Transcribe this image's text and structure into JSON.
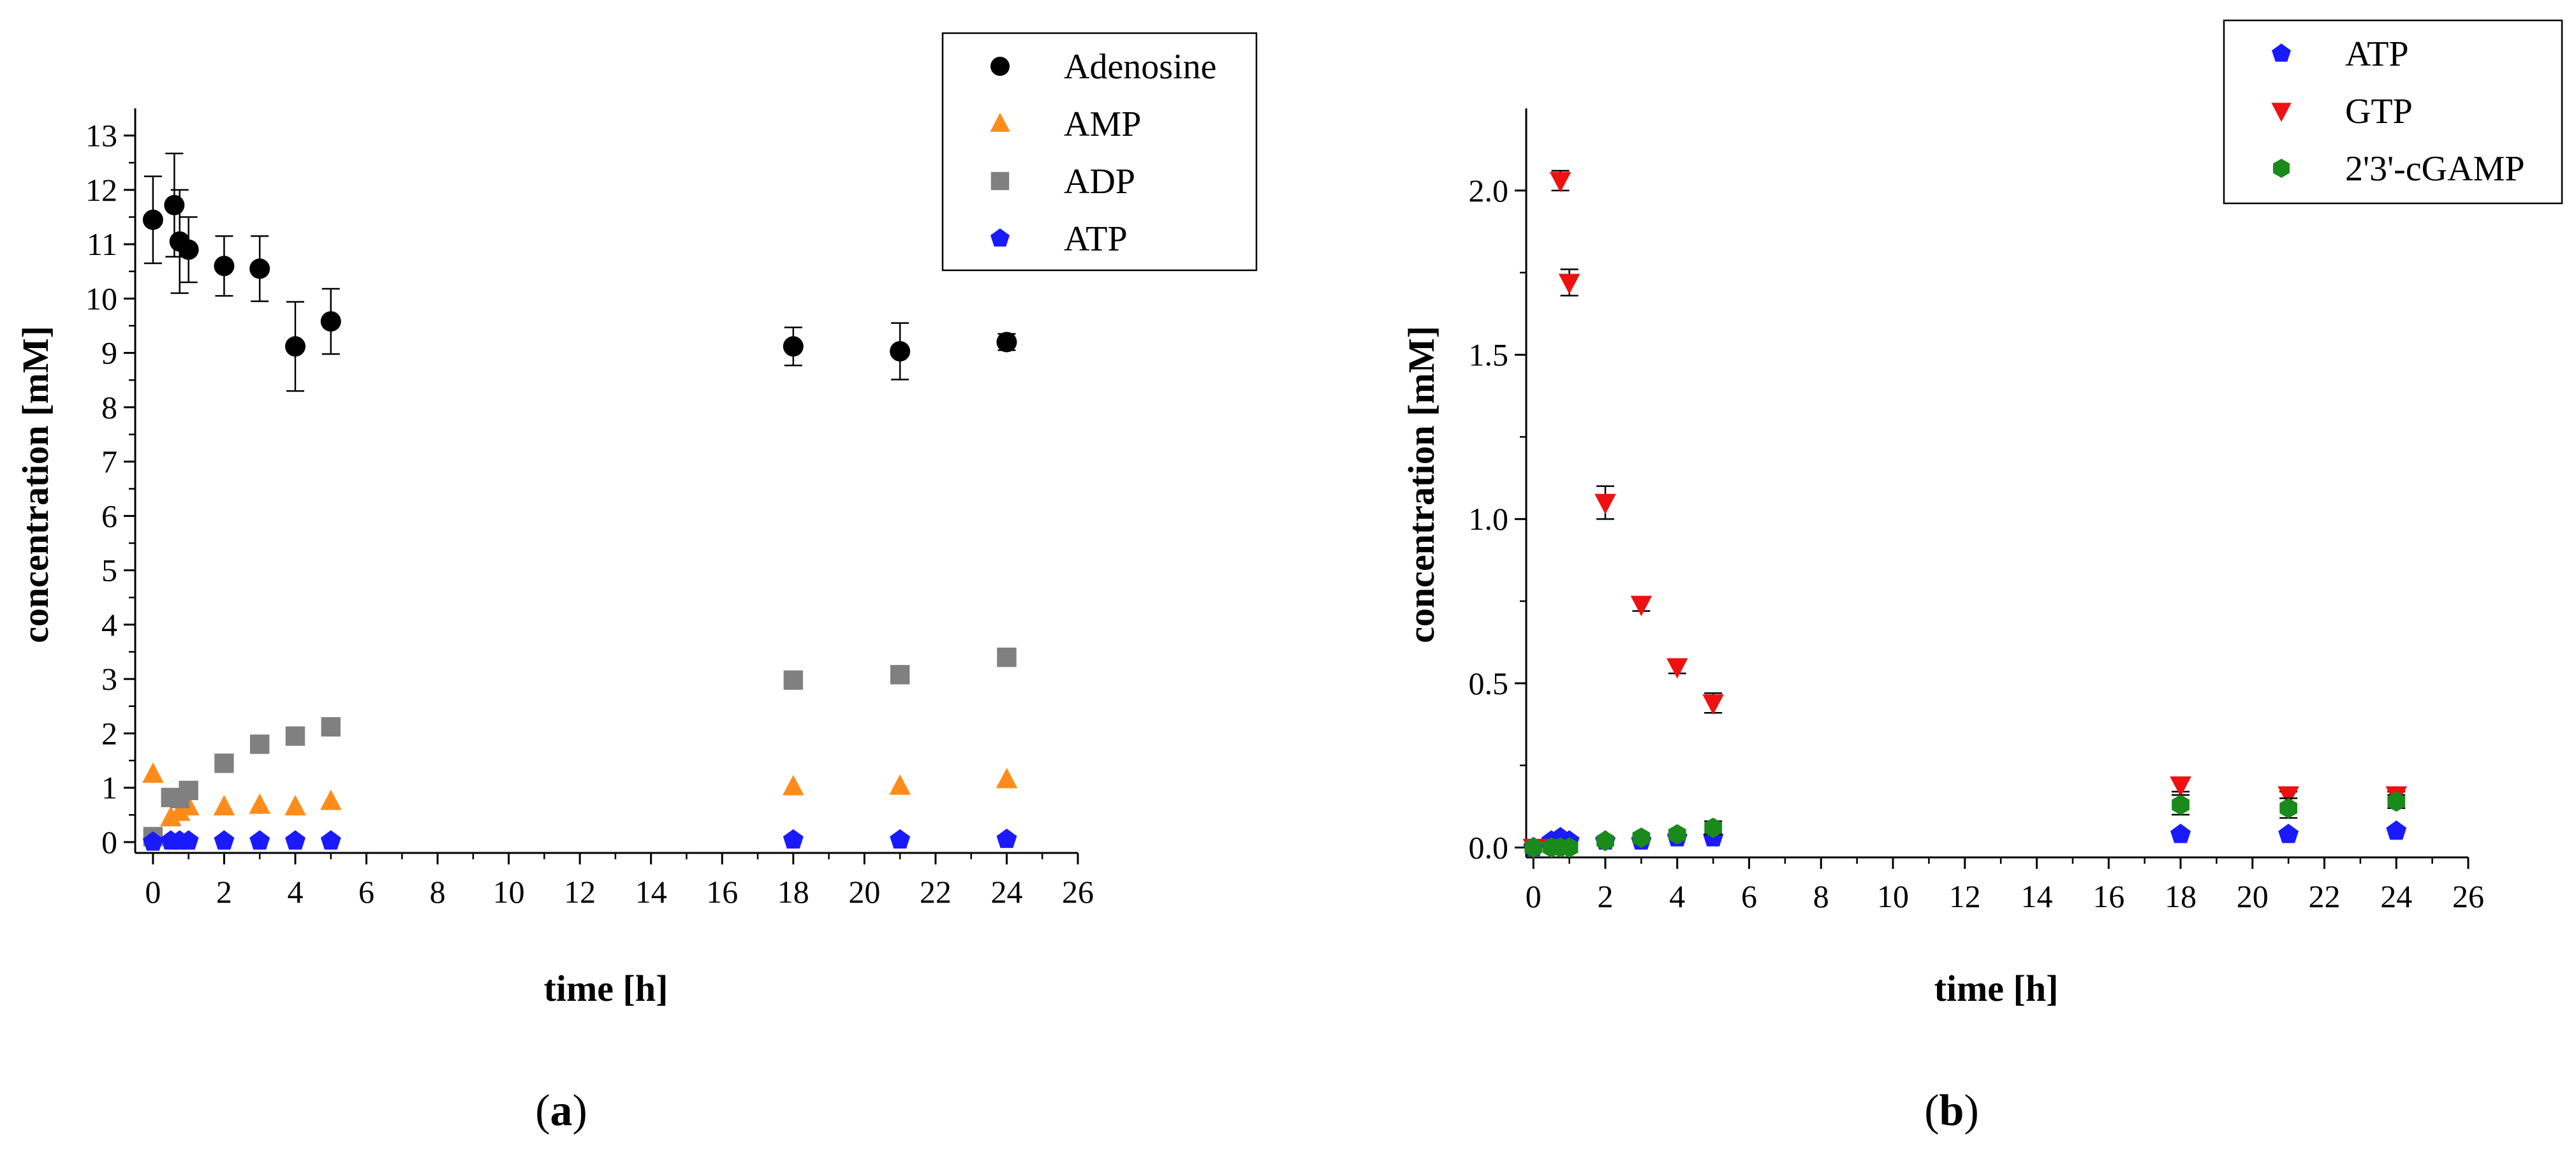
{
  "chart_data": [
    {
      "type": "scatter",
      "panel_label": "(a)",
      "panel_letter": "a",
      "xlabel": "time [h]",
      "ylabel": "concentration [mM]",
      "xlim": [
        -0.5,
        26
      ],
      "ylim": [
        -0.2,
        13.5
      ],
      "xticks": [
        0,
        2,
        4,
        6,
        8,
        10,
        12,
        14,
        16,
        18,
        20,
        22,
        24,
        26
      ],
      "yticks": [
        0,
        1,
        2,
        3,
        4,
        5,
        6,
        7,
        8,
        9,
        10,
        11,
        12,
        13
      ],
      "ytick_decimals": 0,
      "legend_position": "top-right",
      "series": [
        {
          "name": "Adenosine",
          "marker": "circle",
          "color": "#000000",
          "x": [
            0,
            0.6,
            0.75,
            1,
            2,
            3,
            4,
            5,
            18,
            21,
            24
          ],
          "y": [
            11.45,
            11.72,
            11.05,
            10.9,
            10.6,
            10.55,
            9.12,
            9.58,
            9.12,
            9.03,
            9.2
          ],
          "err": [
            0.8,
            0.95,
            0.95,
            0.6,
            0.55,
            0.6,
            0.82,
            0.6,
            0.35,
            0.52,
            0.15
          ]
        },
        {
          "name": "AMP",
          "marker": "triangle-up",
          "color": "#ff8c1a",
          "x": [
            0,
            0.5,
            0.75,
            1,
            2,
            3,
            4,
            5,
            18,
            21,
            24
          ],
          "y": [
            1.25,
            0.45,
            0.55,
            0.65,
            0.65,
            0.68,
            0.65,
            0.75,
            1.02,
            1.03,
            1.15
          ],
          "err": [
            0,
            0,
            0,
            0,
            0,
            0,
            0,
            0,
            0,
            0,
            0
          ]
        },
        {
          "name": "ADP",
          "marker": "square",
          "color": "#808080",
          "x": [
            0,
            0.5,
            0.75,
            1,
            2,
            3,
            4,
            5,
            18,
            21,
            24
          ],
          "y": [
            0.1,
            0.82,
            0.8,
            0.95,
            1.45,
            1.8,
            1.95,
            2.12,
            2.98,
            3.08,
            3.4
          ],
          "err": [
            0,
            0,
            0,
            0,
            0,
            0,
            0,
            0,
            0,
            0,
            0
          ]
        },
        {
          "name": "ATP",
          "marker": "pentagon",
          "color": "#1a1aff",
          "x": [
            0,
            0.5,
            0.75,
            1,
            2,
            3,
            4,
            5,
            18,
            21,
            24
          ],
          "y": [
            0.0,
            0.02,
            0.02,
            0.02,
            0.02,
            0.02,
            0.02,
            0.02,
            0.04,
            0.04,
            0.05
          ],
          "err": [
            0,
            0,
            0,
            0,
            0,
            0,
            0,
            0,
            0,
            0,
            0
          ]
        }
      ]
    },
    {
      "type": "scatter",
      "panel_label": "(b)",
      "panel_letter": "b",
      "xlabel": "time [h]",
      "ylabel": "concentration [mM]",
      "xlim": [
        -0.2,
        26
      ],
      "ylim": [
        -0.03,
        2.25
      ],
      "xticks": [
        0,
        2,
        4,
        6,
        8,
        10,
        12,
        14,
        16,
        18,
        20,
        22,
        24,
        26
      ],
      "yticks": [
        0,
        0.5,
        1.0,
        1.5,
        2.0
      ],
      "ytick_decimals": 1,
      "legend_position": "top-right",
      "series": [
        {
          "name": "ATP",
          "marker": "pentagon",
          "color": "#1a1aff",
          "x": [
            0,
            0.5,
            0.75,
            1,
            2,
            3,
            4,
            5,
            18,
            21,
            24
          ],
          "y": [
            0.0,
            0.02,
            0.03,
            0.02,
            0.02,
            0.02,
            0.03,
            0.03,
            0.04,
            0.04,
            0.05
          ],
          "err": [
            0,
            0,
            0,
            0,
            0,
            0,
            0,
            0,
            0,
            0,
            0
          ]
        },
        {
          "name": "GTP",
          "marker": "triangle-down",
          "color": "#ee1111",
          "x": [
            0,
            0.5,
            0.75,
            1,
            2,
            3,
            4,
            5,
            18,
            21,
            24
          ],
          "y": [
            0.0,
            0.0,
            2.03,
            1.72,
            1.05,
            0.74,
            0.55,
            0.44,
            0.19,
            0.16,
            0.16
          ],
          "err": [
            0,
            0,
            0.03,
            0.04,
            0.05,
            0.02,
            0.02,
            0.03,
            0.02,
            0.01,
            0.01
          ]
        },
        {
          "name": "2'3'-cGAMP",
          "marker": "hexagon",
          "color": "#1a8a1a",
          "x": [
            0,
            0.5,
            0.75,
            1,
            2,
            3,
            4,
            5,
            18,
            21,
            24
          ],
          "y": [
            0.0,
            0.0,
            0.0,
            0.0,
            0.02,
            0.03,
            0.04,
            0.06,
            0.13,
            0.12,
            0.14
          ],
          "err": [
            0,
            0,
            0,
            0,
            0,
            0,
            0,
            0.02,
            0.03,
            0.03,
            0.02
          ]
        }
      ]
    }
  ]
}
